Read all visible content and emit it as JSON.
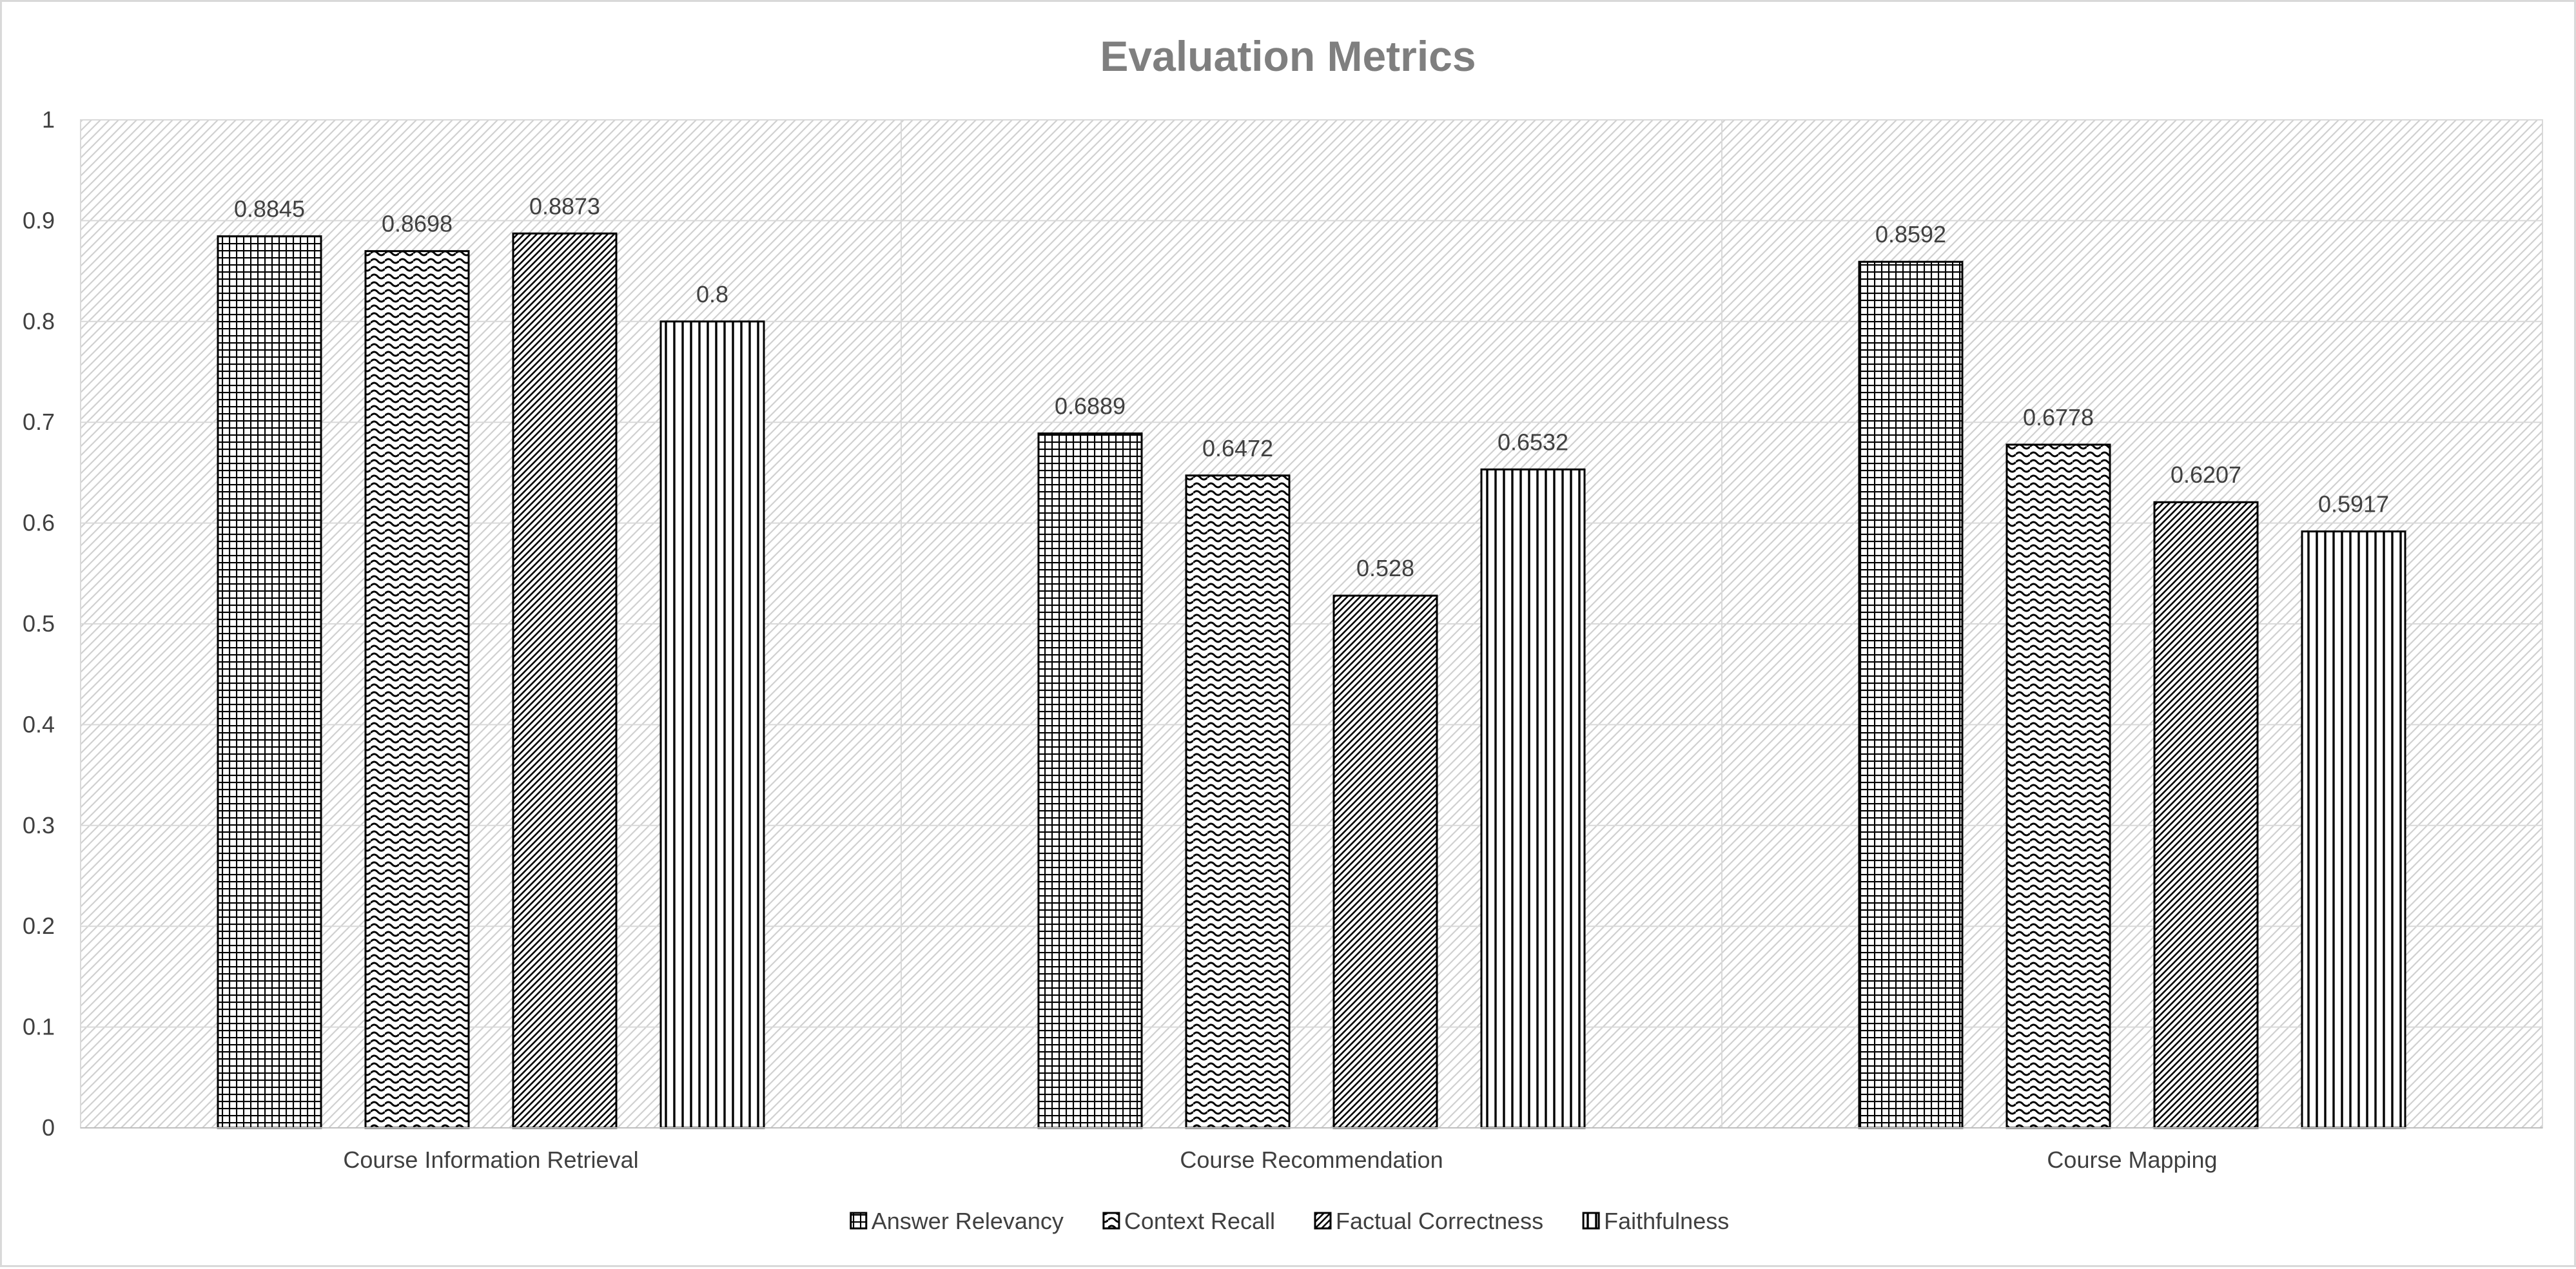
{
  "chart_data": {
    "type": "bar",
    "title": "Evaluation Metrics",
    "categories": [
      "Course Information Retrieval",
      "Course Recommendation",
      "Course Mapping"
    ],
    "series": [
      {
        "name": "Answer Relevancy",
        "values": [
          0.8845,
          0.6889,
          0.8592
        ],
        "labels": [
          "0.8845",
          "0.6889",
          "0.8592"
        ],
        "pattern": "grid"
      },
      {
        "name": "Context Recall",
        "values": [
          0.8698,
          0.6472,
          0.6778
        ],
        "labels": [
          "0.8698",
          "0.6472",
          "0.6778"
        ],
        "pattern": "wave"
      },
      {
        "name": "Factual Correctness",
        "values": [
          0.8873,
          0.528,
          0.6207
        ],
        "labels": [
          "0.8873",
          "0.528",
          "0.6207"
        ],
        "pattern": "diagonal"
      },
      {
        "name": "Faithfulness",
        "values": [
          0.8,
          0.6532,
          0.5917
        ],
        "labels": [
          "0.8",
          "0.6532",
          "0.5917"
        ],
        "pattern": "vertical"
      }
    ],
    "ylim": [
      0,
      1
    ],
    "yticks": [
      "0",
      "0.1",
      "0.2",
      "0.3",
      "0.4",
      "0.5",
      "0.6",
      "0.7",
      "0.8",
      "0.9",
      "1"
    ],
    "xlabel": "",
    "ylabel": "",
    "grid": true,
    "legend": "bottom",
    "colors": {
      "bar_stroke": "#000000",
      "bar_fill": "#ffffff",
      "plot_hatch": "#d0d0d0",
      "gridline": "#d9d9d9",
      "title": "#7f7f7f",
      "text": "#404040"
    }
  }
}
